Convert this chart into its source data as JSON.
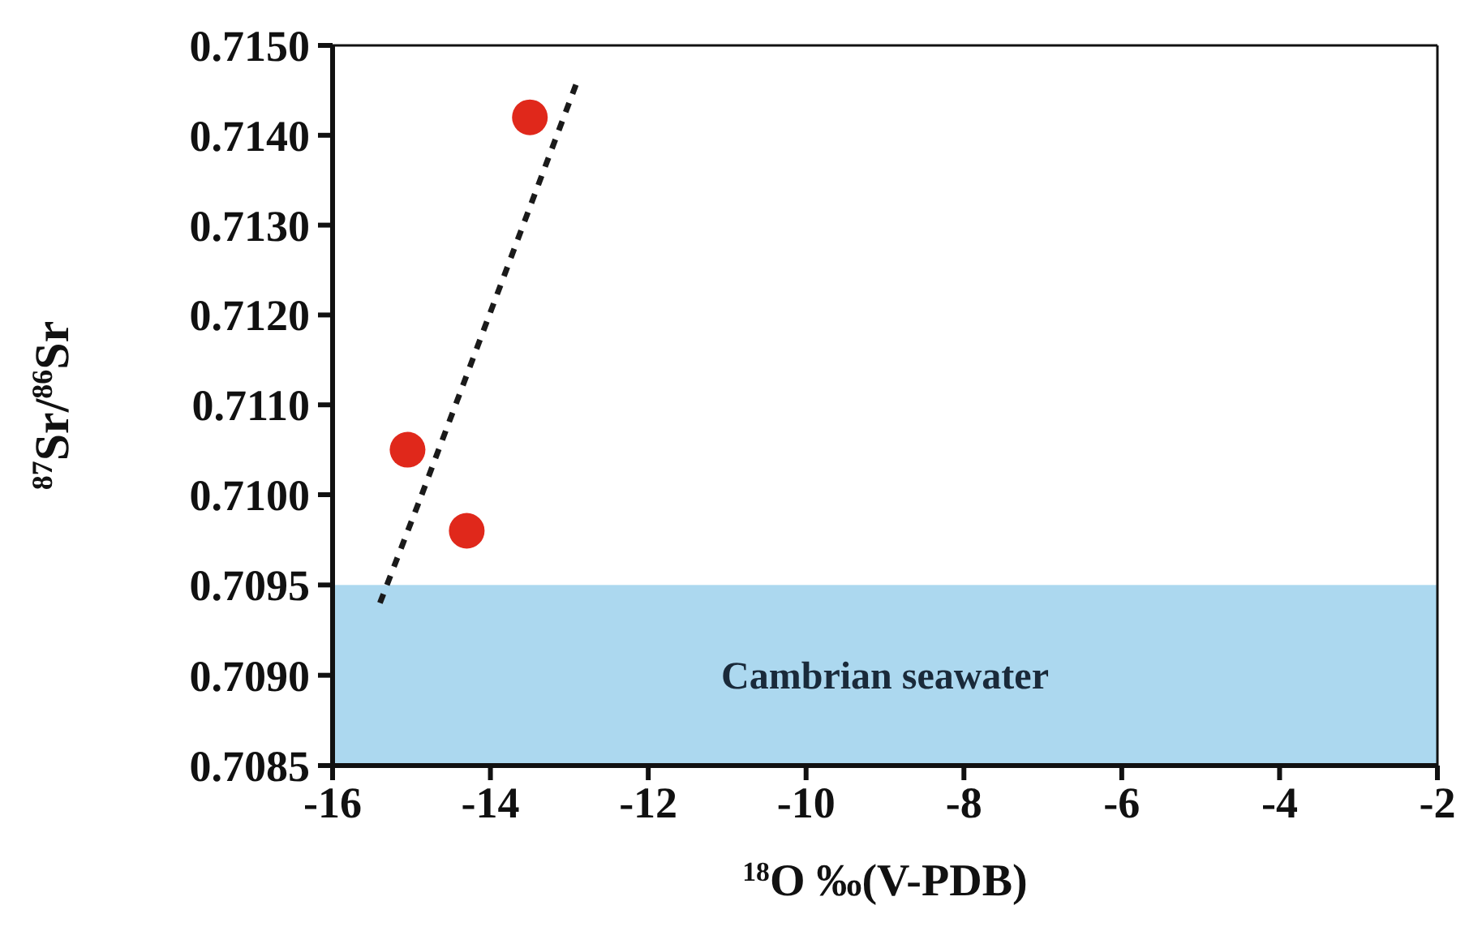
{
  "chart_data": [
    {
      "type": "scatter",
      "ylabel": "$^{87}$Sr/$^{86}$Sr",
      "xlim": [
        -16,
        -2
      ],
      "tick_labels": "y",
      "ylim": [
        0.71,
        0.715
      ],
      "yticks": [
        {
          "value": 0.71,
          "label": "0.7100"
        },
        {
          "value": 0.711,
          "label": "0.7110"
        },
        {
          "value": 0.712,
          "label": "0.7120"
        },
        {
          "value": 0.713,
          "label": "0.7130"
        },
        {
          "value": 0.714,
          "label": "0.7140"
        },
        {
          "value": 0.715,
          "label": "0.7150"
        }
      ],
      "series": [
        {
          "color": "#e0281b",
          "x": [
            -13.5,
            -15.05
          ],
          "values": [
            0.7142,
            0.7105
          ],
          "marker": "circle"
        },
        {
          "type": "line",
          "color": "#1a1a1a",
          "x": [
            -14.87,
            -12.9
          ],
          "values": [
            0.71,
            0.7146
          ],
          "line_style": "dashed",
          "marker": "none"
        }
      ]
    },
    {
      "type": "scatter",
      "xlabel": "$^{18}$O ‰(V-PDB)",
      "xlim": [
        -16,
        -2
      ],
      "xticks": [
        -16,
        -14,
        -12,
        -10,
        -8,
        -6,
        -4,
        -2
      ],
      "ylim": [
        0.7085,
        0.71
      ],
      "yticks": [
        {
          "value": 0.7085,
          "label": "0.7085"
        },
        {
          "value": 0.709,
          "label": "0.7090"
        },
        {
          "value": 0.7095,
          "label": "0.7095"
        }
      ],
      "series": [
        {
          "color": "#e0281b",
          "x": [
            -14.3
          ],
          "values": [
            0.7098
          ],
          "marker": "circle"
        },
        {
          "type": "line",
          "color": "#1a1a1a",
          "x": [
            -15.4,
            -14.87
          ],
          "values": [
            0.7094,
            0.71
          ],
          "line_style": "dashed",
          "marker": "none"
        }
      ],
      "bands": [
        {
          "axis": "y",
          "from": 0.7085,
          "to": 0.7095,
          "label": "Cambrian seawater",
          "color": "#acd8ef"
        }
      ]
    }
  ]
}
